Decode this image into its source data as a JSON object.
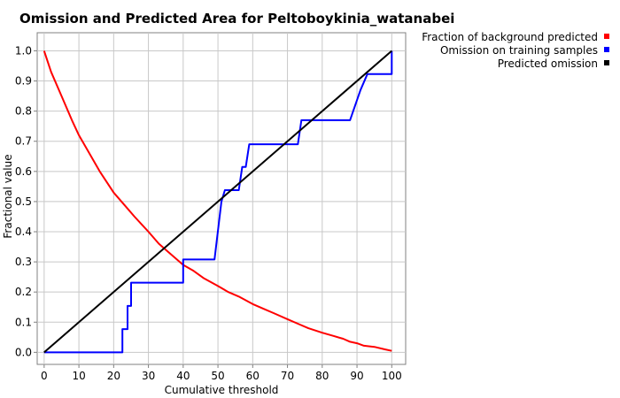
{
  "chart_data": {
    "type": "line",
    "title": "Omission and Predicted Area for Peltoboykinia_watanabei",
    "xlabel": "Cumulative threshold",
    "ylabel": "Fractional value",
    "xlim": [
      -2,
      104
    ],
    "ylim": [
      -0.04,
      1.06
    ],
    "xticks": [
      0,
      10,
      20,
      30,
      40,
      50,
      60,
      70,
      80,
      90,
      100
    ],
    "yticks": [
      0.0,
      0.1,
      0.2,
      0.3,
      0.4,
      0.5,
      0.6,
      0.7,
      0.8,
      0.9,
      1.0
    ],
    "xtick_labels": [
      "0",
      "10",
      "20",
      "30",
      "40",
      "50",
      "60",
      "70",
      "80",
      "90",
      "100"
    ],
    "ytick_labels": [
      "0.0",
      "0.1",
      "0.2",
      "0.3",
      "0.4",
      "0.5",
      "0.6",
      "0.7",
      "0.8",
      "0.9",
      "1.0"
    ],
    "grid": true,
    "legend_position": "top-right-outside",
    "series": [
      {
        "name": "Fraction of background predicted",
        "color": "#ff0000",
        "x": [
          0,
          2,
          5,
          8,
          10,
          13,
          16,
          20,
          23,
          26,
          30,
          33,
          36,
          40,
          43,
          46,
          50,
          53,
          56,
          60,
          63,
          66,
          70,
          73,
          76,
          80,
          83,
          86,
          88,
          90,
          92,
          95,
          98,
          100
        ],
        "y": [
          1.0,
          0.93,
          0.85,
          0.77,
          0.72,
          0.66,
          0.6,
          0.53,
          0.49,
          0.45,
          0.4,
          0.36,
          0.33,
          0.29,
          0.27,
          0.245,
          0.22,
          0.2,
          0.185,
          0.16,
          0.145,
          0.13,
          0.11,
          0.095,
          0.08,
          0.065,
          0.055,
          0.045,
          0.035,
          0.03,
          0.022,
          0.018,
          0.01,
          0.005
        ]
      },
      {
        "name": "Omission on training samples",
        "color": "#0000ff",
        "x": [
          0,
          22.5,
          22.5,
          24,
          24,
          25,
          25,
          26,
          26,
          40,
          40,
          49,
          51,
          52,
          56,
          57,
          58,
          59,
          60,
          73,
          74,
          88,
          91,
          93,
          100,
          100
        ],
        "y": [
          0.0,
          0.0,
          0.077,
          0.077,
          0.154,
          0.154,
          0.231,
          0.231,
          0.231,
          0.231,
          0.308,
          0.308,
          0.5,
          0.538,
          0.538,
          0.615,
          0.615,
          0.69,
          0.69,
          0.69,
          0.77,
          0.77,
          0.87,
          0.923,
          0.923,
          1.0
        ]
      },
      {
        "name": "Predicted omission",
        "color": "#000000",
        "x": [
          0,
          100
        ],
        "y": [
          0.0,
          1.0
        ]
      }
    ]
  }
}
